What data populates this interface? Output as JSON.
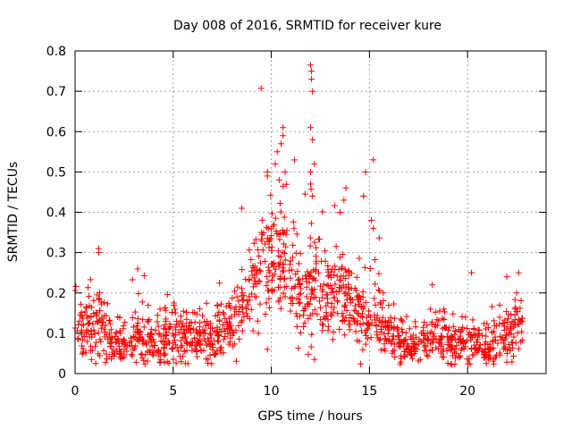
{
  "chart_data": {
    "type": "scatter",
    "title": "Day 008 of 2016, SRMTID for receiver kure",
    "xlabel": "GPS time / hours",
    "ylabel": "SRMTID / TECUs",
    "xlim": [
      0,
      24
    ],
    "ylim": [
      0,
      0.8
    ],
    "x_ticks": [
      "0",
      "5",
      "10",
      "15",
      "20"
    ],
    "x_tick_values": [
      0,
      5,
      10,
      15,
      20
    ],
    "y_ticks": [
      "0",
      "0.1",
      "0.2",
      "0.3",
      "0.4",
      "0.5",
      "0.6",
      "0.7",
      "0.8"
    ],
    "y_tick_values": [
      0,
      0.1,
      0.2,
      0.3,
      0.4,
      0.5,
      0.6,
      0.7,
      0.8
    ],
    "grid": true,
    "marker": "+",
    "color": "#ff0000",
    "point_count": 1400,
    "x_range_of_data": [
      0,
      22.8
    ],
    "envelope": {
      "x": [
        0,
        1,
        2,
        3,
        4,
        5,
        6,
        7,
        7.8,
        8.3,
        8.8,
        9.3,
        9.8,
        10.3,
        10.8,
        11.3,
        11.8,
        12.2,
        12.6,
        13.0,
        13.5,
        14.0,
        14.5,
        15.0,
        15.5,
        16.0,
        16.5,
        17.0,
        17.5,
        18.0,
        18.5,
        19.0,
        19.5,
        20.0,
        20.5,
        21.0,
        21.5,
        22.0,
        22.5,
        22.8
      ],
      "mean": [
        0.1,
        0.12,
        0.08,
        0.08,
        0.09,
        0.09,
        0.09,
        0.09,
        0.1,
        0.14,
        0.19,
        0.23,
        0.27,
        0.29,
        0.26,
        0.22,
        0.2,
        0.22,
        0.2,
        0.19,
        0.18,
        0.17,
        0.15,
        0.13,
        0.14,
        0.1,
        0.09,
        0.07,
        0.07,
        0.09,
        0.1,
        0.08,
        0.07,
        0.08,
        0.07,
        0.06,
        0.08,
        0.09,
        0.1,
        0.12
      ],
      "spread": [
        0.05,
        0.06,
        0.04,
        0.04,
        0.05,
        0.05,
        0.04,
        0.04,
        0.05,
        0.06,
        0.07,
        0.09,
        0.1,
        0.1,
        0.09,
        0.08,
        0.08,
        0.09,
        0.08,
        0.08,
        0.08,
        0.07,
        0.06,
        0.05,
        0.06,
        0.04,
        0.04,
        0.03,
        0.03,
        0.04,
        0.04,
        0.04,
        0.03,
        0.04,
        0.04,
        0.03,
        0.04,
        0.05,
        0.05,
        0.06
      ]
    },
    "notable_points": [
      {
        "x": 1.2,
        "y": 0.31
      },
      {
        "x": 1.2,
        "y": 0.3
      },
      {
        "x": 8.5,
        "y": 0.41
      },
      {
        "x": 9.8,
        "y": 0.5
      },
      {
        "x": 9.8,
        "y": 0.49
      },
      {
        "x": 10.4,
        "y": 0.48
      },
      {
        "x": 10.6,
        "y": 0.61
      },
      {
        "x": 10.6,
        "y": 0.59
      },
      {
        "x": 10.5,
        "y": 0.57
      },
      {
        "x": 10.3,
        "y": 0.55
      },
      {
        "x": 10.2,
        "y": 0.52
      },
      {
        "x": 10.7,
        "y": 0.5
      },
      {
        "x": 12.0,
        "y": 0.765
      },
      {
        "x": 12.05,
        "y": 0.75
      },
      {
        "x": 12.05,
        "y": 0.73
      },
      {
        "x": 12.1,
        "y": 0.7
      },
      {
        "x": 12.0,
        "y": 0.61
      },
      {
        "x": 12.1,
        "y": 0.58
      },
      {
        "x": 12.2,
        "y": 0.52
      },
      {
        "x": 12.0,
        "y": 0.5
      },
      {
        "x": 12.0,
        "y": 0.47
      },
      {
        "x": 12.1,
        "y": 0.44
      },
      {
        "x": 13.8,
        "y": 0.46
      },
      {
        "x": 13.7,
        "y": 0.43
      },
      {
        "x": 13.5,
        "y": 0.4
      },
      {
        "x": 14.8,
        "y": 0.5
      },
      {
        "x": 14.7,
        "y": 0.44
      },
      {
        "x": 15.2,
        "y": 0.53
      },
      {
        "x": 15.1,
        "y": 0.38
      },
      {
        "x": 15.2,
        "y": 0.36
      },
      {
        "x": 18.2,
        "y": 0.22
      },
      {
        "x": 20.2,
        "y": 0.25
      },
      {
        "x": 22.0,
        "y": 0.24
      },
      {
        "x": 22.6,
        "y": 0.25
      },
      {
        "x": 22.5,
        "y": 0.2
      },
      {
        "x": 12.2,
        "y": 0.035
      },
      {
        "x": 9.8,
        "y": 0.06
      }
    ]
  }
}
